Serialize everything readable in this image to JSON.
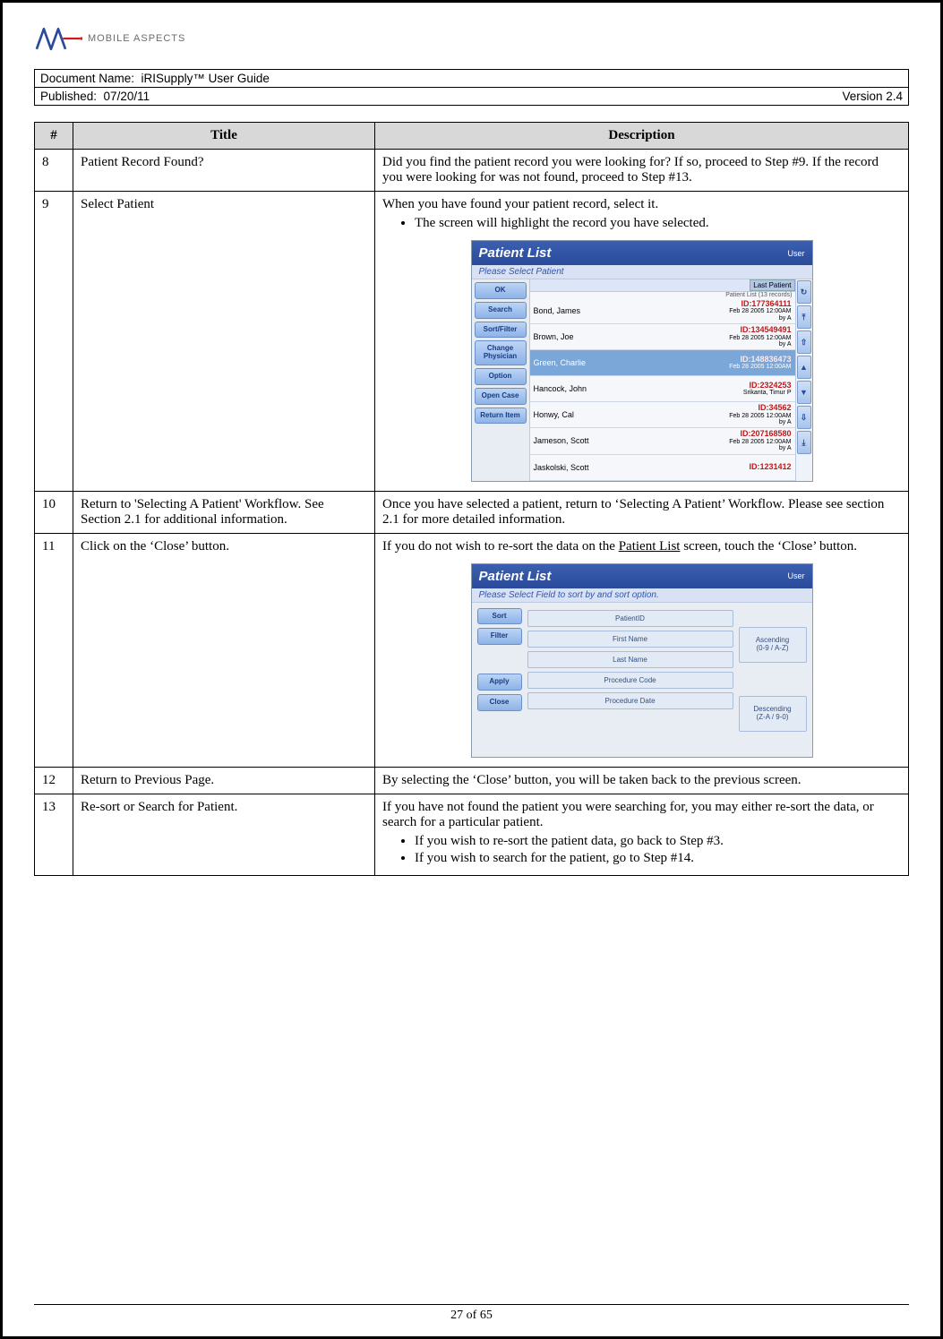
{
  "logo": {
    "text": "MOBILE ASPECTS"
  },
  "meta": {
    "docname_label": "Document Name:  ",
    "docname_value": "iRISupply™ User Guide",
    "published_label": "Published:  ",
    "published_value": "07/20/11",
    "version": "Version 2.4"
  },
  "headers": {
    "num": "#",
    "title": "Title",
    "desc": "Description"
  },
  "rows": {
    "r8": {
      "n": "8",
      "title": "Patient Record Found?",
      "desc": "Did you find the patient record you were looking for?  If so, proceed to Step #9.  If the record you were looking for was not found, proceed to Step #13."
    },
    "r9": {
      "n": "9",
      "title": "Select Patient",
      "desc_line": "When you have found your patient record, select it.",
      "bullet1": "The screen will highlight the record you have selected."
    },
    "r10": {
      "n": "10",
      "title": "Return to 'Selecting A Patient' Workflow.  See Section 2.1 for additional information.",
      "desc": "Once you have selected a patient, return to ‘Selecting A Patient’ Workflow.  Please see section 2.1 for more detailed information."
    },
    "r11": {
      "n": "11",
      "title": "Click on the ‘Close’ button.",
      "desc_a": "If you do not wish to re-sort the data on the ",
      "desc_link": "Patient List",
      "desc_b": " screen, touch the ‘Close’ button."
    },
    "r12": {
      "n": "12",
      "title": "Return to Previous Page.",
      "desc": "By selecting the ‘Close’ button, you will be taken back to the previous screen."
    },
    "r13": {
      "n": "13",
      "title": "Re-sort or Search for Patient.",
      "desc_line": "If you have not found the patient you were searching for, you may either re-sort the data, or search for a particular patient.",
      "bullet1": "If you wish to re-sort the patient data, go back to Step #3.",
      "bullet2": "If you wish to search for the patient, go to Step #14."
    }
  },
  "app1": {
    "title": "Patient List",
    "user": "User",
    "sub": "Please Select Patient",
    "last_patient": "Last Patient",
    "count": "Patient List (13 records)",
    "buttons": [
      "OK",
      "Search",
      "Sort/Filter",
      "Change Physician",
      "Option",
      "Open Case",
      "Return Item"
    ],
    "scroll": [
      "↻",
      "⤒",
      "⇧",
      "▲",
      "▼",
      "⇩",
      "⤓"
    ],
    "patients": [
      {
        "name": "Bond, James",
        "id": "ID:177364111",
        "date": "Feb 28 2005 12:00AM",
        "by": "by A"
      },
      {
        "name": "Brown, Joe",
        "id": "ID:134549491",
        "date": "Feb 28 2005 12:00AM",
        "by": "by A"
      },
      {
        "name": "Green, Charlie",
        "id": "ID:148836473",
        "date": "Feb 28 2005 12:00AM",
        "by": "",
        "sel": true
      },
      {
        "name": "Hancock, John",
        "id": "ID:2324253",
        "date": "",
        "by": "Srikanta, Timur P"
      },
      {
        "name": "Honwy, Cal",
        "id": "ID:34562",
        "date": "Feb 28 2005 12:00AM",
        "by": "by A"
      },
      {
        "name": "Jameson, Scott",
        "id": "ID:207168580",
        "date": "Feb 28 2005 12:00AM",
        "by": "by A"
      },
      {
        "name": "Jaskolski, Scott",
        "id": "ID:1231412",
        "date": "",
        "by": ""
      }
    ]
  },
  "app2": {
    "title": "Patient List",
    "user": "User",
    "sub": "Please Select Field to sort by and sort option.",
    "left": [
      "Sort",
      "Filter",
      "Apply",
      "Close"
    ],
    "fields": [
      "PatientID",
      "First Name",
      "Last Name",
      "Procedure Code",
      "Procedure Date"
    ],
    "orders": [
      "Ascending\n(0-9 / A-Z)",
      "Descending\n(Z-A / 9-0)"
    ]
  },
  "footer": "27 of 65"
}
